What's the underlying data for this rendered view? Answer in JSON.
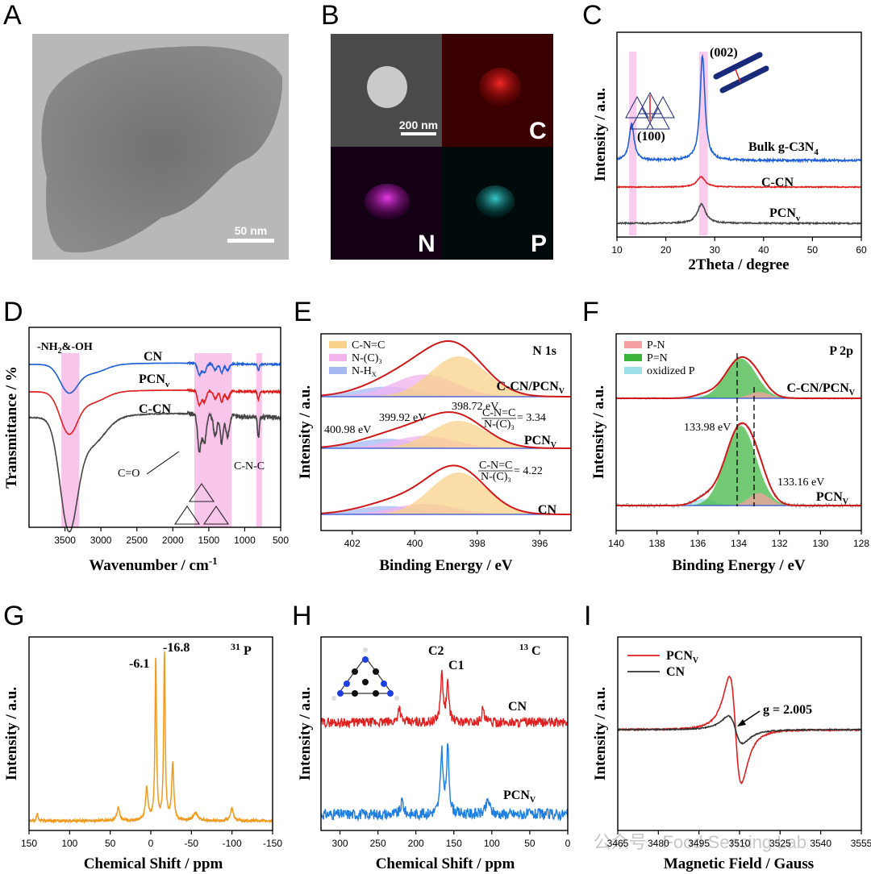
{
  "panels": {
    "A": {
      "letter": "A",
      "scale_bar": "50 nm"
    },
    "B": {
      "letter": "B",
      "scale_bar": "200 nm",
      "maps": [
        "C",
        "N",
        "P"
      ]
    },
    "C": {
      "letter": "C"
    },
    "D": {
      "letter": "D"
    },
    "E": {
      "letter": "E"
    },
    "F": {
      "letter": "F"
    },
    "G": {
      "letter": "G"
    },
    "H": {
      "letter": "H"
    },
    "I": {
      "letter": "I"
    }
  },
  "colors": {
    "blue": "#1f5fd6",
    "red": "#e02020",
    "gray": "#444444",
    "orange": "#f29a1e",
    "pink": "#f6b7e6"
  },
  "watermark": "公众号 · Food Sensing Lab",
  "chart_data": [
    {
      "id": "C",
      "type": "line",
      "title": "",
      "xlabel": "2Theta / degree",
      "ylabel": "Intensity / a.u.",
      "xlim": [
        10,
        60
      ],
      "xticks": [
        10,
        20,
        30,
        40,
        50,
        60
      ],
      "series": [
        {
          "name": "Bulk g-C3N4",
          "label": "Bulk g-C",
          "color": "#1f5fd6",
          "peaks": [
            {
              "x": 13.0,
              "h": 0.35
            },
            {
              "x": 27.5,
              "h": 1.0
            }
          ]
        },
        {
          "name": "C-CN",
          "label": "C-CN",
          "color": "#e02020",
          "peaks": [
            {
              "x": 27.2,
              "h": 0.22
            }
          ]
        },
        {
          "name": "PCNv",
          "label": "PCN",
          "color": "#444444",
          "peaks": [
            {
              "x": 27.3,
              "h": 0.3
            }
          ]
        }
      ],
      "highlight_bands": [
        [
          12.5,
          14.0
        ],
        [
          26.8,
          28.6
        ]
      ],
      "annotations": [
        "(100)",
        "(002)"
      ]
    },
    {
      "id": "D",
      "type": "line",
      "xlabel": "Wavenumber / cm",
      "ylabel": "Transmittance / %",
      "xlim": [
        4000,
        500
      ],
      "xticks": [
        3500,
        3000,
        2500,
        2000,
        1500,
        1000,
        500
      ],
      "series": [
        {
          "name": "CN",
          "label": "CN",
          "color": "#1f5fd6"
        },
        {
          "name": "PCNv",
          "label": "PCN",
          "color": "#e02020"
        },
        {
          "name": "C-CN",
          "label": "C-CN",
          "color": "#444444"
        }
      ],
      "highlight_bands": [
        [
          3550,
          3300
        ],
        [
          1700,
          1180
        ],
        [
          840,
          760
        ]
      ],
      "annotations": [
        "-NH",
        "&-OH",
        "C=O",
        "C-N-C"
      ]
    },
    {
      "id": "E",
      "type": "area",
      "xlabel": "Binding Energy / eV",
      "ylabel": "Intensity / a.u.",
      "xlim": [
        403,
        395
      ],
      "xticks": [
        402,
        400,
        398,
        396
      ],
      "panel_label": "N 1s",
      "legend": [
        "C-N=C",
        "N-(C)",
        "N-H"
      ],
      "series": [
        {
          "name": "C-CN/PCNv",
          "label": "C-CN/PCN"
        },
        {
          "name": "PCNv",
          "label": "PCN"
        },
        {
          "name": "CN",
          "label": "CN"
        }
      ],
      "peak_positions_eV": [
        398.72,
        399.92,
        400.98
      ],
      "annotations": [
        "398.72 eV",
        "399.92 eV",
        "400.98 eV",
        "C-N=C",
        "N-(C)",
        "= 3.34",
        "= 4.22"
      ]
    },
    {
      "id": "F",
      "type": "area",
      "xlabel": "Binding Energy / eV",
      "ylabel": "Intensity / a.u.",
      "xlim": [
        140,
        128
      ],
      "xticks": [
        140,
        138,
        136,
        134,
        132,
        130,
        128
      ],
      "panel_label": "P 2p",
      "legend": [
        "P-N",
        "P=N",
        "oxidized P"
      ],
      "series": [
        {
          "name": "C-CN/PCNv",
          "label": "C-CN/PCN"
        },
        {
          "name": "PCNv",
          "label": "PCN"
        }
      ],
      "peak_positions_eV": [
        133.98,
        133.16
      ],
      "annotations": [
        "133.98 eV",
        "133.16 eV"
      ]
    },
    {
      "id": "G",
      "type": "line",
      "xlabel": "Chemical Shift / ppm",
      "ylabel": "Intensity / a.u.",
      "xlim": [
        150,
        -150
      ],
      "xticks": [
        150,
        100,
        50,
        0,
        -50,
        -100,
        -150
      ],
      "panel_label": "P",
      "panel_label_sup": "31",
      "peaks_ppm": [
        -6.1,
        -16.8
      ],
      "annotations": [
        "-6.1",
        "-16.8"
      ]
    },
    {
      "id": "H",
      "type": "line",
      "xlabel": "Chemical Shift / ppm",
      "ylabel": "Intensity / a.u.",
      "xlim": [
        325,
        0
      ],
      "xticks": [
        300,
        250,
        200,
        150,
        100,
        50,
        0
      ],
      "panel_label": "C",
      "panel_label_sup": "13",
      "series": [
        {
          "name": "CN",
          "label": "CN",
          "color": "#e02020"
        },
        {
          "name": "PCNv",
          "label": "PCN",
          "color": "#1f7fe0"
        }
      ],
      "peaks_ppm": [
        164,
        156
      ],
      "annotations": [
        "C2",
        "C1"
      ]
    },
    {
      "id": "I",
      "type": "line",
      "xlabel": "Magnetic Field / Gauss",
      "ylabel": "Intensity / a.u.",
      "xlim": [
        3465,
        3555
      ],
      "xticks": [
        3465,
        3480,
        3495,
        3510,
        3525,
        3540,
        3555
      ],
      "series": [
        {
          "name": "PCNv",
          "label": "PCN",
          "color": "#e02020"
        },
        {
          "name": "CN",
          "label": "CN",
          "color": "#333333"
        }
      ],
      "g_value": "g = 2.005"
    }
  ]
}
